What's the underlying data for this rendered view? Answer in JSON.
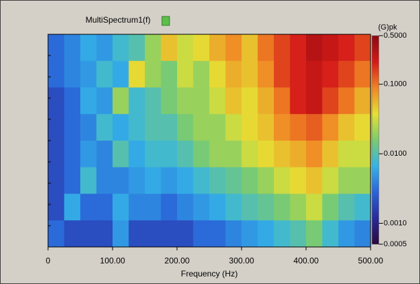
{
  "chart_data": {
    "type": "heatmap",
    "title": "MultiSpectrum1(f)",
    "legend_color": "#5cbf4a",
    "xlabel": "Frequency (Hz)",
    "xlim": [
      0,
      500
    ],
    "xticks": [
      0,
      {
        "value": 100,
        "label": "100.00"
      },
      {
        "value": 200,
        "label": "200.00"
      },
      {
        "value": 300,
        "label": "300.00"
      },
      {
        "value": 400,
        "label": "400.00"
      },
      {
        "value": 500,
        "label": "500.00"
      }
    ],
    "zlabel": "(G)pk",
    "zlim": [
      0.0005,
      0.5
    ],
    "zscale": "log",
    "zticks": [
      {
        "value": 0.5,
        "label": "0.5000"
      },
      {
        "value": 0.1,
        "label": "0.1000"
      },
      {
        "value": 0.01,
        "label": "0.0100"
      },
      {
        "value": 0.001,
        "label": "0.0010"
      },
      {
        "value": 0.0005,
        "label": "0.0005"
      }
    ],
    "colormap": [
      "#2a0a3a",
      "#2a2a9a",
      "#2a64d8",
      "#34b4e8",
      "#7ccc6c",
      "#e6e034",
      "#f08424",
      "#d41a18",
      "#8a0a10"
    ],
    "z": [
      [
        0.003,
        0.004,
        0.006,
        0.005,
        0.008,
        0.01,
        0.02,
        0.05,
        0.03,
        0.04,
        0.06,
        0.08,
        0.05,
        0.1,
        0.15,
        0.2,
        0.3,
        0.25,
        0.2,
        0.15
      ],
      [
        0.003,
        0.004,
        0.005,
        0.008,
        0.006,
        0.04,
        0.02,
        0.015,
        0.03,
        0.02,
        0.04,
        0.06,
        0.05,
        0.08,
        0.15,
        0.2,
        0.25,
        0.2,
        0.15,
        0.1
      ],
      [
        0.002,
        0.003,
        0.006,
        0.005,
        0.02,
        0.008,
        0.01,
        0.015,
        0.02,
        0.02,
        0.03,
        0.05,
        0.04,
        0.06,
        0.1,
        0.2,
        0.25,
        0.15,
        0.1,
        0.06
      ],
      [
        0.002,
        0.003,
        0.004,
        0.008,
        0.006,
        0.008,
        0.01,
        0.01,
        0.015,
        0.02,
        0.02,
        0.03,
        0.04,
        0.05,
        0.08,
        0.1,
        0.12,
        0.08,
        0.05,
        0.04
      ],
      [
        0.002,
        0.003,
        0.005,
        0.004,
        0.01,
        0.006,
        0.008,
        0.008,
        0.01,
        0.015,
        0.02,
        0.02,
        0.03,
        0.04,
        0.05,
        0.06,
        0.08,
        0.05,
        0.03,
        0.03
      ],
      [
        0.002,
        0.003,
        0.008,
        0.004,
        0.004,
        0.005,
        0.006,
        0.005,
        0.006,
        0.008,
        0.01,
        0.012,
        0.015,
        0.02,
        0.03,
        0.04,
        0.05,
        0.03,
        0.02,
        0.02
      ],
      [
        0.002,
        0.006,
        0.003,
        0.003,
        0.006,
        0.004,
        0.004,
        0.003,
        0.004,
        0.005,
        0.006,
        0.008,
        0.01,
        0.012,
        0.015,
        0.02,
        0.03,
        0.015,
        0.01,
        0.008
      ],
      [
        0.003,
        0.002,
        0.002,
        0.002,
        0.005,
        0.002,
        0.002,
        0.002,
        0.002,
        0.003,
        0.003,
        0.004,
        0.005,
        0.006,
        0.008,
        0.01,
        0.015,
        0.008,
        0.005,
        0.004
      ]
    ]
  }
}
